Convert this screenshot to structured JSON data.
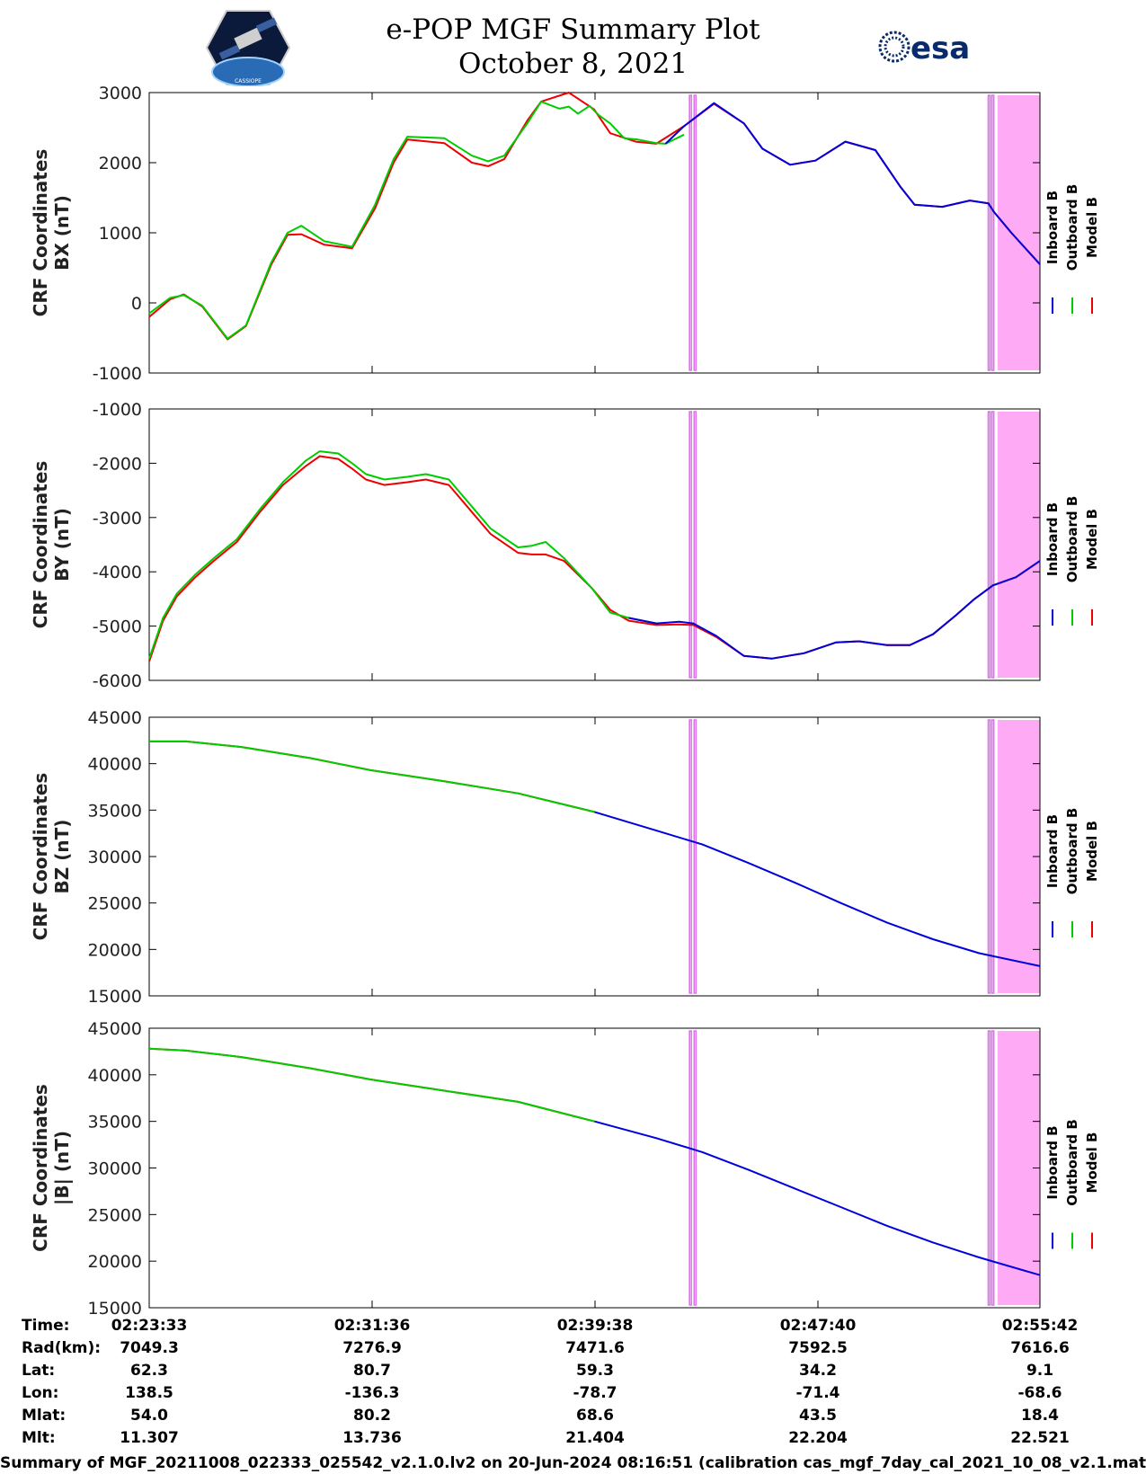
{
  "header": {
    "title_line1": "e-POP MGF Summary Plot",
    "title_line2": "October 8, 2021",
    "logo_left_text": "CASSIOPE",
    "logo_right_text": "esa"
  },
  "colors": {
    "inboard": "#0000dd",
    "outboard": "#00cc00",
    "model": "#ee0000",
    "shade": "#ffaaf5",
    "shade_line": "#e070ee"
  },
  "legend": [
    "Inboard B",
    "Outboard B",
    "Model B"
  ],
  "chart_data": [
    {
      "type": "line",
      "ylabel": [
        "CRF Coordinates",
        "BX (nT)"
      ],
      "ylim": [
        -1000,
        3000
      ],
      "yticks": [
        3000,
        2000,
        1000,
        0,
        -1000
      ],
      "xlim": [
        0,
        1932
      ],
      "x_tick_labels": [
        "02:23:33",
        "02:31:36",
        "02:39:38",
        "02:47:40",
        "02:55:42"
      ],
      "shaded_spans": [
        [
          1172,
          1176
        ],
        [
          1182,
          1186
        ],
        [
          1820,
          1824
        ],
        [
          1828,
          1832
        ],
        [
          1840,
          1932
        ]
      ],
      "series": [
        {
          "name": "Model B",
          "color_key": "model",
          "x": [
            0,
            45,
            75,
            115,
            170,
            210,
            265,
            300,
            330,
            380,
            440,
            490,
            530,
            560,
            640,
            700,
            735,
            770,
            820,
            850,
            910,
            965,
            1000,
            1055,
            1100,
            1160,
            1225,
            1290,
            1330,
            1390,
            1445,
            1510,
            1575,
            1630,
            1660,
            1720,
            1780,
            1820,
            1832,
            1870,
            1932
          ],
          "y": [
            -200,
            50,
            120,
            -50,
            -520,
            -330,
            550,
            970,
            980,
            830,
            780,
            1350,
            2000,
            2330,
            2280,
            2000,
            1950,
            2050,
            2600,
            2870,
            3000,
            2760,
            2420,
            2300,
            2270,
            2520,
            2840,
            2560,
            2200,
            1970,
            2030,
            2300,
            2180,
            1650,
            1400,
            1370,
            1460,
            1420,
            1300,
            1000,
            550
          ]
        },
        {
          "name": "Outboard B",
          "color_key": "outboard",
          "x": [
            0,
            45,
            75,
            115,
            170,
            210,
            265,
            300,
            330,
            380,
            440,
            490,
            530,
            560,
            640,
            700,
            735,
            770,
            820,
            850,
            890,
            910,
            930,
            955,
            975,
            1000,
            1030,
            1060,
            1100,
            1120,
            1160
          ],
          "y": [
            -150,
            70,
            110,
            -40,
            -510,
            -320,
            580,
            1000,
            1100,
            880,
            800,
            1400,
            2050,
            2370,
            2350,
            2100,
            2020,
            2100,
            2560,
            2870,
            2770,
            2800,
            2700,
            2810,
            2680,
            2560,
            2350,
            2330,
            2280,
            2270,
            2400
          ]
        },
        {
          "name": "Inboard B",
          "color_key": "inboard",
          "x": [
            1120,
            1160,
            1225,
            1290,
            1330,
            1390,
            1445,
            1510,
            1575,
            1630,
            1660,
            1720,
            1780,
            1820,
            1832,
            1870,
            1932
          ],
          "y": [
            2270,
            2520,
            2850,
            2560,
            2200,
            1970,
            2030,
            2300,
            2180,
            1650,
            1400,
            1370,
            1460,
            1420,
            1300,
            1000,
            550
          ]
        }
      ]
    },
    {
      "type": "line",
      "ylabel": [
        "CRF Coordinates",
        "BY (nT)"
      ],
      "ylim": [
        -6000,
        -1000
      ],
      "yticks": [
        -1000,
        -2000,
        -3000,
        -4000,
        -5000,
        -6000
      ],
      "xlim": [
        0,
        1932
      ],
      "x_tick_labels": [
        "02:23:33",
        "02:31:36",
        "02:39:38",
        "02:47:40",
        "02:55:42"
      ],
      "shaded_spans": [
        [
          1172,
          1176
        ],
        [
          1182,
          1186
        ],
        [
          1820,
          1824
        ],
        [
          1828,
          1832
        ],
        [
          1840,
          1932
        ]
      ],
      "series": [
        {
          "name": "Model B",
          "color_key": "model",
          "x": [
            0,
            30,
            60,
            100,
            140,
            190,
            240,
            290,
            340,
            370,
            410,
            440,
            470,
            510,
            560,
            600,
            650,
            700,
            740,
            800,
            830,
            860,
            900,
            960,
            1000,
            1040,
            1100,
            1150,
            1180,
            1230,
            1290,
            1350,
            1420,
            1490,
            1540,
            1600,
            1650,
            1700,
            1750,
            1790,
            1830,
            1880,
            1932
          ],
          "y": [
            -5650,
            -4900,
            -4450,
            -4100,
            -3800,
            -3450,
            -2900,
            -2400,
            -2050,
            -1870,
            -1920,
            -2100,
            -2300,
            -2400,
            -2350,
            -2300,
            -2400,
            -2900,
            -3300,
            -3650,
            -3680,
            -3680,
            -3800,
            -4300,
            -4700,
            -4900,
            -4980,
            -4970,
            -4980,
            -5200,
            -5550,
            -5600,
            -5500,
            -5300,
            -5280,
            -5350,
            -5350,
            -5150,
            -4800,
            -4500,
            -4250,
            -4100,
            -3800
          ]
        },
        {
          "name": "Outboard B",
          "color_key": "outboard",
          "x": [
            0,
            30,
            60,
            100,
            140,
            190,
            240,
            290,
            340,
            370,
            410,
            440,
            470,
            510,
            560,
            600,
            650,
            700,
            740,
            800,
            830,
            860,
            900,
            960,
            1000,
            1040,
            1100
          ],
          "y": [
            -5600,
            -4850,
            -4400,
            -4050,
            -3750,
            -3400,
            -2850,
            -2350,
            -1950,
            -1780,
            -1820,
            -2000,
            -2200,
            -2300,
            -2250,
            -2200,
            -2300,
            -2800,
            -3200,
            -3550,
            -3520,
            -3450,
            -3750,
            -4300,
            -4750,
            -4850,
            -4950
          ]
        },
        {
          "name": "Inboard B",
          "color_key": "inboard",
          "x": [
            1040,
            1100,
            1150,
            1180,
            1230,
            1290,
            1350,
            1420,
            1490,
            1540,
            1600,
            1650,
            1700,
            1750,
            1790,
            1830,
            1880,
            1932
          ],
          "y": [
            -4850,
            -4950,
            -4920,
            -4950,
            -5180,
            -5550,
            -5600,
            -5500,
            -5300,
            -5280,
            -5350,
            -5350,
            -5150,
            -4800,
            -4500,
            -4250,
            -4100,
            -3800
          ]
        }
      ]
    },
    {
      "type": "line",
      "ylabel": [
        "CRF Coordinates",
        "BZ (nT)"
      ],
      "ylim": [
        15000,
        45000
      ],
      "yticks": [
        45000,
        40000,
        35000,
        30000,
        25000,
        20000,
        15000
      ],
      "xlim": [
        0,
        1932
      ],
      "x_tick_labels": [
        "02:23:33",
        "02:31:36",
        "02:39:38",
        "02:47:40",
        "02:55:42"
      ],
      "shaded_spans": [
        [
          1172,
          1176
        ],
        [
          1182,
          1186
        ],
        [
          1820,
          1824
        ],
        [
          1828,
          1832
        ],
        [
          1840,
          1932
        ]
      ],
      "series": [
        {
          "name": "Model B",
          "color_key": "model",
          "x": [
            0,
            80,
            200,
            350,
            480,
            640,
            800,
            966
          ],
          "y": [
            42400,
            42400,
            41800,
            40600,
            39300,
            38100,
            36800,
            34800
          ]
        },
        {
          "name": "Outboard B",
          "color_key": "outboard",
          "x": [
            0,
            80,
            200,
            350,
            480,
            640,
            800,
            966
          ],
          "y": [
            42400,
            42400,
            41800,
            40600,
            39300,
            38100,
            36800,
            34800
          ]
        },
        {
          "name": "Inboard B",
          "color_key": "inboard",
          "x": [
            966,
            1100,
            1200,
            1300,
            1400,
            1500,
            1600,
            1700,
            1800,
            1932
          ],
          "y": [
            34800,
            32800,
            31300,
            29300,
            27200,
            25000,
            22900,
            21100,
            19600,
            18200
          ]
        }
      ]
    },
    {
      "type": "line",
      "ylabel": [
        "CRF Coordinates",
        "|B| (nT)"
      ],
      "ylim": [
        15000,
        45000
      ],
      "yticks": [
        45000,
        40000,
        35000,
        30000,
        25000,
        20000,
        15000
      ],
      "xlim": [
        0,
        1932
      ],
      "x_tick_labels": [
        "02:23:33",
        "02:31:36",
        "02:39:38",
        "02:47:40",
        "02:55:42"
      ],
      "shaded_spans": [
        [
          1172,
          1176
        ],
        [
          1182,
          1186
        ],
        [
          1820,
          1824
        ],
        [
          1828,
          1832
        ],
        [
          1840,
          1932
        ]
      ],
      "series": [
        {
          "name": "Model B",
          "color_key": "model",
          "x": [
            0,
            80,
            200,
            350,
            480,
            640,
            800,
            966
          ],
          "y": [
            42800,
            42600,
            41900,
            40700,
            39500,
            38300,
            37100,
            35000
          ]
        },
        {
          "name": "Outboard B",
          "color_key": "outboard",
          "x": [
            0,
            80,
            200,
            350,
            480,
            640,
            800,
            966
          ],
          "y": [
            42800,
            42600,
            41900,
            40700,
            39500,
            38300,
            37100,
            35000
          ]
        },
        {
          "name": "Inboard B",
          "color_key": "inboard",
          "x": [
            966,
            1100,
            1200,
            1300,
            1400,
            1500,
            1600,
            1700,
            1800,
            1932
          ],
          "y": [
            35000,
            33200,
            31700,
            29800,
            27800,
            25800,
            23800,
            22000,
            20400,
            18500
          ]
        }
      ]
    }
  ],
  "info_table": {
    "labels": [
      "Time:",
      "Rad(km):",
      "Lat:",
      "Lon:",
      "Mlat:",
      "Mlt:"
    ],
    "columns": [
      [
        "02:23:33",
        "7049.3",
        "62.3",
        "138.5",
        "54.0",
        "11.307"
      ],
      [
        "02:31:36",
        "7276.9",
        "80.7",
        "-136.3",
        "80.2",
        "13.736"
      ],
      [
        "02:39:38",
        "7471.6",
        "59.3",
        "-78.7",
        "68.6",
        "21.404"
      ],
      [
        "02:47:40",
        "7592.5",
        "34.2",
        "-71.4",
        "43.5",
        "22.204"
      ],
      [
        "02:55:42",
        "7616.6",
        "9.1",
        "-68.6",
        "18.4",
        "22.521"
      ]
    ]
  },
  "footer": "Summary of MGF_20211008_022333_025542_v2.1.0.lv2 on 20-Jun-2024 08:16:51 (calibration cas_mgf_7day_cal_2021_10_08_v2.1.mat )"
}
